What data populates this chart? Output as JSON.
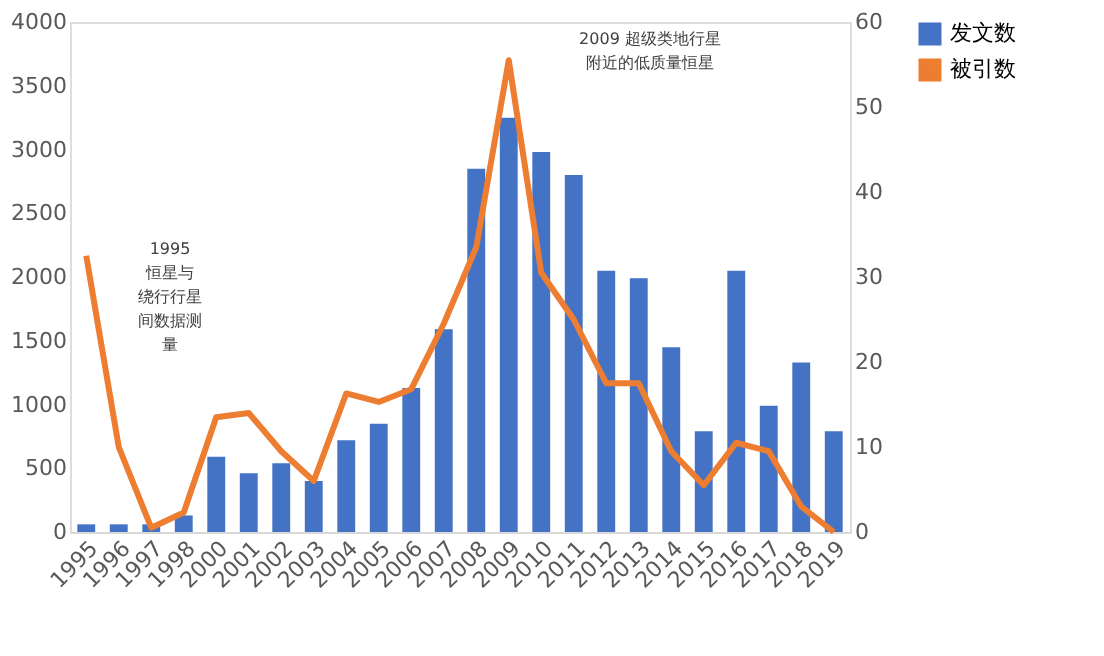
{
  "chart_data": {
    "type": "bar",
    "categories": [
      "1995",
      "1996",
      "1997",
      "1998",
      "2000",
      "2001",
      "2002",
      "2003",
      "2004",
      "2005",
      "2006",
      "2007",
      "2008",
      "2009",
      "2010",
      "2011",
      "2012",
      "2013",
      "2014",
      "2015",
      "2016",
      "2017",
      "2018",
      "2019"
    ],
    "series": [
      {
        "name": "发文数",
        "color": "#4472c4",
        "values": [
          60,
          60,
          60,
          130,
          590,
          460,
          540,
          400,
          720,
          850,
          1130,
          1590,
          2850,
          3250,
          2980,
          2800,
          2050,
          1990,
          1450,
          790,
          2050,
          990,
          1330,
          790
        ]
      },
      {
        "name": "被引数",
        "type": "line",
        "axis": "y2",
        "color": "#ed7d31",
        "values": [
          32.5,
          10,
          0.5,
          2.3,
          13.5,
          14,
          9.5,
          6,
          16.3,
          15.3,
          16.8,
          24.5,
          33.5,
          55.5,
          30.5,
          25,
          17.5,
          17.5,
          9.5,
          5.5,
          10.5,
          9.5,
          3,
          0
        ]
      }
    ],
    "ylim": [
      0,
      4000
    ],
    "yticks": [
      0,
      500,
      1000,
      1500,
      2000,
      2500,
      3000,
      3500,
      4000
    ],
    "y2lim": [
      0,
      60
    ],
    "y2ticks": [
      0,
      10,
      20,
      30,
      40,
      50,
      60
    ],
    "annotations": [
      "1995 恒星与绕行行星间数据测量",
      "2009 超级类地行星附近的低质量恒星"
    ],
    "grid": false,
    "legend": "right",
    "line_style": "solid",
    "marker": "none"
  }
}
